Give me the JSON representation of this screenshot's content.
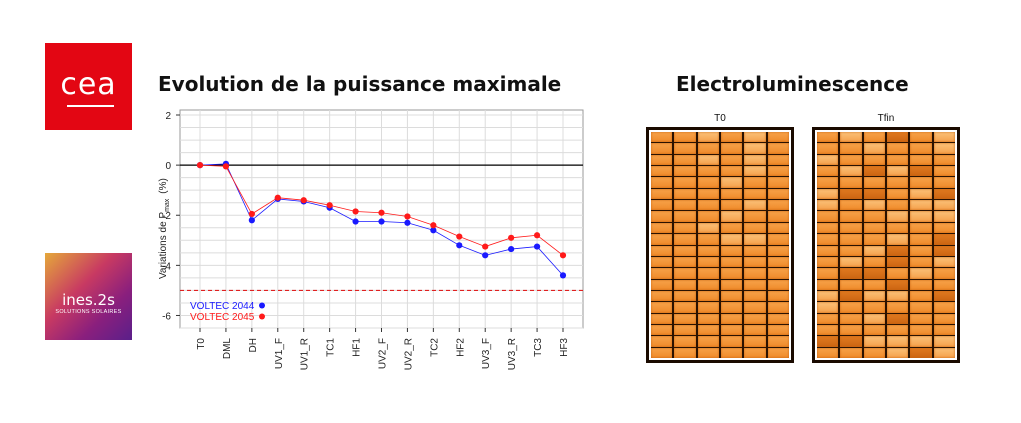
{
  "logos": {
    "cea": "cea",
    "ines_main": "ines.2s",
    "ines_sub": "SOLUTIONS SOLAIRES"
  },
  "headings": {
    "chart": "Evolution de la puissance maximale",
    "electroluminescence": "Electroluminescence"
  },
  "el_images": {
    "left_label": "T0",
    "right_label": "Tfin"
  },
  "colors": {
    "series1": "#1a1aff",
    "series2": "#ff1a1a",
    "threshold": "#e02020",
    "cea_red": "#e30613"
  },
  "chart_data": {
    "type": "line",
    "ylabel": "Variations de Pₘₐₓ (%)",
    "ylabel_main": "Variations de P",
    "ylabel_sub": "max",
    "ylabel_unit": "(%)",
    "ylim": [
      -6.5,
      2.2
    ],
    "yticks": [
      2,
      0,
      -2,
      -4,
      -6
    ],
    "grid": true,
    "legend_position": "bottom-left",
    "categories": [
      "T0",
      "DML",
      "DH",
      "UV1_F",
      "UV1_R",
      "TC1",
      "HF1",
      "UV2_F",
      "UV2_R",
      "TC2",
      "HF2",
      "UV3_F",
      "UV3_R",
      "TC3",
      "HF3"
    ],
    "series": [
      {
        "name": "VOLTEC 2044",
        "color": "#1a1aff",
        "values": [
          0,
          0.05,
          -2.2,
          -1.35,
          -1.45,
          -1.7,
          -2.25,
          -2.25,
          -2.3,
          -2.6,
          -3.2,
          -3.6,
          -3.35,
          -3.25,
          -4.4
        ]
      },
      {
        "name": "VOLTEC 2045",
        "color": "#ff1a1a",
        "values": [
          0,
          -0.05,
          -1.95,
          -1.3,
          -1.4,
          -1.6,
          -1.85,
          -1.9,
          -2.05,
          -2.4,
          -2.85,
          -3.25,
          -2.9,
          -2.8,
          -3.6
        ]
      }
    ],
    "reference_lines": [
      {
        "y": 0,
        "style": "solid",
        "color": "#000000"
      },
      {
        "y": -5,
        "style": "dashed",
        "color": "#e02020"
      }
    ]
  }
}
